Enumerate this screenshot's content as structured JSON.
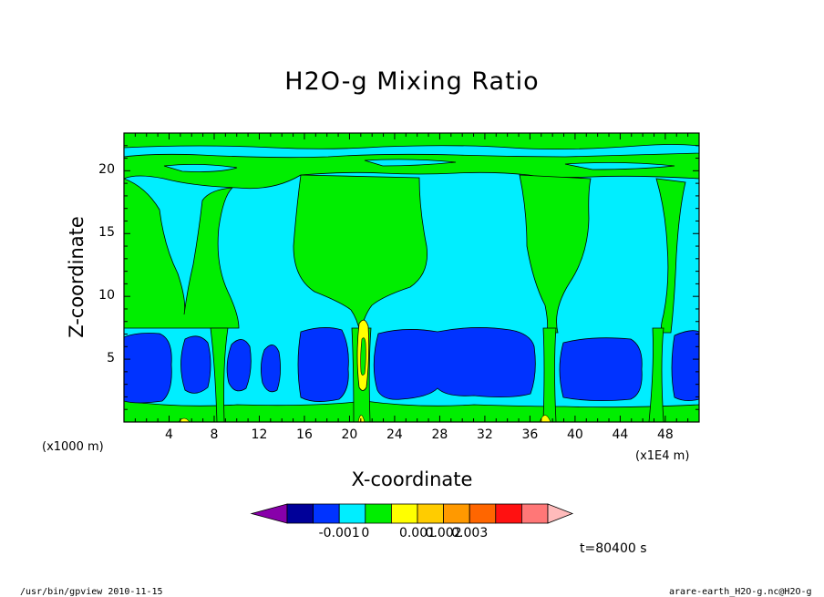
{
  "chart_data": {
    "type": "heatmap",
    "title": "H2O-g Mixing Ratio",
    "xlabel": "X-coordinate",
    "ylabel": "Z-coordinate",
    "x_unit": "(x1000 m)",
    "x_scale_note": "(x1E4 m)",
    "xlim": [
      0,
      51
    ],
    "ylim": [
      0,
      23
    ],
    "x_ticks": [
      "4",
      "8",
      "12",
      "16",
      "20",
      "24",
      "28",
      "32",
      "36",
      "40",
      "44",
      "48"
    ],
    "y_ticks": [
      "5",
      "10",
      "15",
      "20"
    ],
    "colorbar": {
      "colors": [
        "#8800aa",
        "#000099",
        "#0033ff",
        "#00eeff",
        "#00ee00",
        "#ffff00",
        "#ffcc00",
        "#ff9900",
        "#ff6600",
        "#ff1111",
        "#ff7777",
        "#ffbbbb"
      ],
      "labels": [
        "-0.001",
        "0",
        "0.001",
        "0.002",
        "0.003"
      ]
    },
    "field_regions": {
      "background": "light blue (#00eeff)",
      "upper_band": "green (#00ee00) layers near z = 18-22",
      "green_plumes_x": [
        4,
        19.5,
        37,
        47
      ],
      "dark_blue_cells": [
        {
          "x": [
            1,
            4
          ],
          "z": [
            1.5,
            7
          ]
        },
        {
          "x": [
            5,
            8
          ],
          "z": [
            2,
            6.5
          ]
        },
        {
          "x": [
            9,
            11
          ],
          "z": [
            2,
            6.5
          ]
        },
        {
          "x": [
            12,
            14
          ],
          "z": [
            2,
            6
          ]
        },
        {
          "x": [
            15.5,
            20
          ],
          "z": [
            1.5,
            7.5
          ]
        },
        {
          "x": [
            22,
            36.5
          ],
          "z": [
            1.5,
            7.5
          ]
        },
        {
          "x": [
            38.5,
            46
          ],
          "z": [
            1.5,
            7
          ]
        },
        {
          "x": [
            47.5,
            51
          ],
          "z": [
            1.5,
            7
          ]
        }
      ],
      "yellow_core_x": 21
    }
  },
  "time_label": "t=80400 s",
  "footer": {
    "left": "/usr/bin/gpview  2010-11-15",
    "right": "arare-earth_H2O-g.nc@H2O-g"
  }
}
